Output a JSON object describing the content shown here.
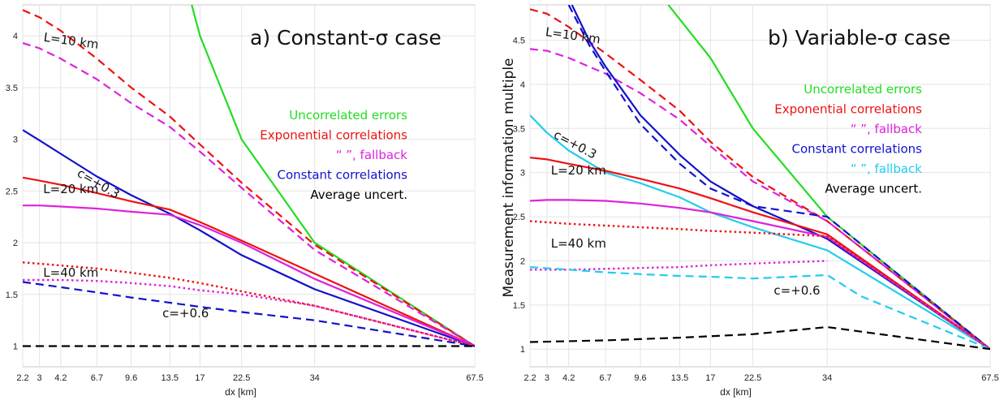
{
  "chart_data": [
    {
      "type": "line",
      "title": "a)   Constant-σ case",
      "xlabel": "dx [km]",
      "ylabel": "",
      "xticks": [
        "2.2",
        "3",
        "4.2",
        "6.7",
        "9.6",
        "13.5",
        "17",
        "22.5",
        "34",
        "67.5"
      ],
      "xtick_values": [
        2.2,
        3,
        4.2,
        6.7,
        9.6,
        13.5,
        17,
        22.5,
        34,
        67.5
      ],
      "x_scale": "square-root (tick values unevenly spaced)",
      "xlim": [
        2.2,
        67.5
      ],
      "ylim": [
        0.8,
        4.3
      ],
      "yticks": [
        1,
        1.5,
        2,
        2.5,
        3,
        3.5,
        4
      ],
      "grid": true,
      "legend": {
        "placement": "right",
        "entries": [
          {
            "text": "Uncorrelated errors",
            "color": "#22dd22"
          },
          {
            "text": "Exponential correlations",
            "color": "#ee1111"
          },
          {
            "text": "“              ”, fallback",
            "color": "#dd22dd"
          },
          {
            "text": "Constant correlations",
            "color": "#1111cc"
          },
          {
            "text": "Average uncert.",
            "color": "#000000"
          }
        ]
      },
      "annotations": [
        {
          "text": "L=10 km",
          "x": 3.2,
          "y": 3.95,
          "rotate": 8
        },
        {
          "text": "c=+0.3",
          "x": 5.2,
          "y": 2.65,
          "rotate": 30
        },
        {
          "text": "L=20 km",
          "x": 3.2,
          "y": 2.48,
          "rotate": 0
        },
        {
          "text": "L=40 km",
          "x": 3.2,
          "y": 1.67,
          "rotate": 0
        },
        {
          "text": "c=+0.6",
          "x": 12.7,
          "y": 1.28,
          "rotate": 0
        }
      ],
      "series": [
        {
          "color": "#22dd22",
          "dash": "solid",
          "x": [
            16,
            17,
            22.5,
            34,
            67.5
          ],
          "y": [
            4.3,
            4.0,
            3.0,
            2.0,
            1.0
          ]
        },
        {
          "color": "#ee1111",
          "dash": "dashed",
          "x": [
            2.2,
            3,
            4.2,
            6.7,
            9.6,
            13.5,
            17,
            22.5,
            34,
            67.5
          ],
          "y": [
            4.25,
            4.18,
            4.05,
            3.78,
            3.5,
            3.22,
            2.95,
            2.58,
            1.98,
            1.0
          ]
        },
        {
          "color": "#dd22dd",
          "dash": "dashed",
          "x": [
            2.2,
            3,
            4.2,
            6.7,
            9.6,
            13.5,
            17,
            22.5,
            34,
            67.5
          ],
          "y": [
            3.93,
            3.88,
            3.78,
            3.58,
            3.35,
            3.12,
            2.88,
            2.53,
            1.93,
            1.0
          ]
        },
        {
          "color": "#1111cc",
          "dash": "solid",
          "x": [
            2.2,
            3,
            4.2,
            6.7,
            9.6,
            13.5,
            17,
            22.5,
            34,
            67.5
          ],
          "y": [
            3.09,
            2.99,
            2.86,
            2.64,
            2.46,
            2.28,
            2.12,
            1.88,
            1.55,
            1.0
          ]
        },
        {
          "color": "#ee1111",
          "dash": "solid",
          "x": [
            2.2,
            3,
            4.2,
            6.7,
            9.6,
            13.5,
            17,
            22.5,
            34,
            67.5
          ],
          "y": [
            2.63,
            2.6,
            2.56,
            2.48,
            2.4,
            2.32,
            2.2,
            2.02,
            1.7,
            1.0
          ]
        },
        {
          "color": "#dd22dd",
          "dash": "solid",
          "x": [
            2.2,
            3,
            4.2,
            6.7,
            9.6,
            13.5,
            17,
            22.5,
            34,
            67.5
          ],
          "y": [
            2.36,
            2.36,
            2.35,
            2.33,
            2.3,
            2.27,
            2.17,
            2.0,
            1.65,
            1.0
          ]
        },
        {
          "color": "#ee1111",
          "dash": "dotted",
          "x": [
            2.2,
            4.2,
            6.7,
            9.6,
            13.5,
            17,
            22.5,
            34,
            67.5
          ],
          "y": [
            1.81,
            1.78,
            1.75,
            1.71,
            1.66,
            1.61,
            1.53,
            1.39,
            1.0
          ]
        },
        {
          "color": "#dd22dd",
          "dash": "dotted",
          "x": [
            2.2,
            4.2,
            6.7,
            9.6,
            13.5,
            17,
            22.5,
            34,
            67.5
          ],
          "y": [
            1.64,
            1.64,
            1.63,
            1.61,
            1.58,
            1.54,
            1.5,
            1.39,
            1.0
          ]
        },
        {
          "color": "#1111cc",
          "dash": "dashed",
          "x": [
            2.2,
            4.2,
            6.7,
            9.6,
            13.5,
            17,
            22.5,
            34,
            67.5
          ],
          "y": [
            1.62,
            1.57,
            1.52,
            1.47,
            1.42,
            1.38,
            1.33,
            1.25,
            1.0
          ]
        },
        {
          "color": "#000000",
          "dash": "dashed",
          "x": [
            2.2,
            67.5
          ],
          "y": [
            1.0,
            1.0
          ]
        }
      ]
    },
    {
      "type": "line",
      "title": "b)   Variable-σ case",
      "xlabel": "dx [km]",
      "ylabel": "Measurement information multiple",
      "xticks": [
        "2.2",
        "3",
        "4.2",
        "6.7",
        "9.6",
        "13.5",
        "17",
        "22.5",
        "34",
        "67.5"
      ],
      "xtick_values": [
        2.2,
        3,
        4.2,
        6.7,
        9.6,
        13.5,
        17,
        22.5,
        34,
        67.5
      ],
      "x_scale": "square-root (tick values unevenly spaced)",
      "xlim": [
        2.2,
        67.5
      ],
      "ylim": [
        0.8,
        4.9
      ],
      "yticks": [
        1,
        1.5,
        2,
        2.5,
        3,
        3.5,
        4,
        4.5
      ],
      "grid": true,
      "legend": {
        "placement": "right",
        "entries": [
          {
            "text": "Uncorrelated errors",
            "color": "#22dd22"
          },
          {
            "text": "Exponential correlations",
            "color": "#ee1111"
          },
          {
            "text": "“              ”, fallback",
            "color": "#dd22dd"
          },
          {
            "text": "Constant correlations",
            "color": "#1111cc"
          },
          {
            "text": "“              ”, fallback",
            "color": "#22ccee"
          },
          {
            "text": "Average uncert.",
            "color": "#000000"
          }
        ]
      },
      "annotations": [
        {
          "text": "L=10 km",
          "x": 2.9,
          "y": 4.55,
          "rotate": 8
        },
        {
          "text": "c=+0.3",
          "x": 3.3,
          "y": 3.4,
          "rotate": 28
        },
        {
          "text": "L=20 km",
          "x": 3.2,
          "y": 2.98,
          "rotate": 0
        },
        {
          "text": "L=40 km",
          "x": 3.2,
          "y": 2.15,
          "rotate": 0
        },
        {
          "text": "c=+0.6",
          "x": 25.5,
          "y": 1.62,
          "rotate": 0
        }
      ],
      "series": [
        {
          "color": "#22dd22",
          "dash": "solid",
          "x": [
            12.3,
            17,
            22.5,
            34,
            67.5
          ],
          "y": [
            4.9,
            4.3,
            3.5,
            2.5,
            1.0
          ]
        },
        {
          "color": "#ee1111",
          "dash": "dashed",
          "x": [
            2.2,
            3,
            4.2,
            6.7,
            9.6,
            13.5,
            17,
            22.5,
            34,
            67.5
          ],
          "y": [
            4.85,
            4.8,
            4.65,
            4.35,
            4.05,
            3.7,
            3.35,
            2.95,
            2.45,
            1.0
          ]
        },
        {
          "color": "#dd22dd",
          "dash": "dashed",
          "x": [
            2.2,
            3,
            4.2,
            6.7,
            9.6,
            13.5,
            17,
            22.5,
            34,
            67.5
          ],
          "y": [
            4.4,
            4.38,
            4.3,
            4.12,
            3.9,
            3.6,
            3.3,
            2.9,
            2.45,
            1.0
          ]
        },
        {
          "color": "#1111cc",
          "dash": "solid",
          "x": [
            4.4,
            5.5,
            6.7,
            9.6,
            13.5,
            17,
            22.5,
            34,
            67.5
          ],
          "y": [
            4.9,
            4.5,
            4.2,
            3.65,
            3.2,
            2.9,
            2.62,
            2.25,
            1.0
          ]
        },
        {
          "color": "#1111cc",
          "dash": "dashed",
          "x": [
            4.2,
            5.5,
            6.7,
            9.6,
            13.5,
            17,
            22.5,
            34,
            67.5
          ],
          "y": [
            4.9,
            4.45,
            4.15,
            3.55,
            3.1,
            2.82,
            2.62,
            2.5,
            1.0
          ]
        },
        {
          "color": "#22ccee",
          "dash": "solid",
          "x": [
            2.2,
            3,
            4.2,
            6.7,
            9.6,
            13.5,
            17,
            22.5,
            34,
            67.5
          ],
          "y": [
            3.65,
            3.45,
            3.25,
            3.0,
            2.88,
            2.72,
            2.55,
            2.38,
            2.12,
            1.0
          ]
        },
        {
          "color": "#ee1111",
          "dash": "solid",
          "x": [
            2.2,
            3,
            4.2,
            6.7,
            9.6,
            13.5,
            17,
            22.5,
            34,
            67.5
          ],
          "y": [
            3.17,
            3.15,
            3.1,
            3.02,
            2.93,
            2.82,
            2.71,
            2.55,
            2.3,
            1.0
          ]
        },
        {
          "color": "#dd22dd",
          "dash": "solid",
          "x": [
            2.2,
            3,
            4.2,
            6.7,
            9.6,
            13.5,
            17,
            22.5,
            34,
            67.5
          ],
          "y": [
            2.68,
            2.69,
            2.69,
            2.68,
            2.65,
            2.6,
            2.55,
            2.45,
            2.27,
            1.0
          ]
        },
        {
          "color": "#ee1111",
          "dash": "dotted",
          "x": [
            2.2,
            4.2,
            6.7,
            9.6,
            13.5,
            17,
            22.5,
            34,
            67.5
          ],
          "y": [
            2.45,
            2.42,
            2.4,
            2.38,
            2.36,
            2.34,
            2.32,
            2.28,
            1.0
          ]
        },
        {
          "color": "#dd22dd",
          "dash": "dotted",
          "x": [
            2.2,
            4.2,
            6.7,
            9.6,
            13.5,
            17,
            22.5,
            34
          ],
          "y": [
            1.9,
            1.9,
            1.91,
            1.92,
            1.93,
            1.95,
            1.97,
            2.0
          ]
        },
        {
          "color": "#22ccee",
          "dash": "dashed",
          "x": [
            2.2,
            4.2,
            6.7,
            9.6,
            13.5,
            17,
            22.5,
            34,
            40,
            67.5
          ],
          "y": [
            1.93,
            1.9,
            1.87,
            1.85,
            1.83,
            1.82,
            1.8,
            1.84,
            1.6,
            1.0
          ]
        },
        {
          "color": "#000000",
          "dash": "dashed",
          "x": [
            2.2,
            6.7,
            13.5,
            22.5,
            34,
            67.5
          ],
          "y": [
            1.08,
            1.1,
            1.13,
            1.17,
            1.25,
            1.0
          ]
        }
      ]
    }
  ]
}
